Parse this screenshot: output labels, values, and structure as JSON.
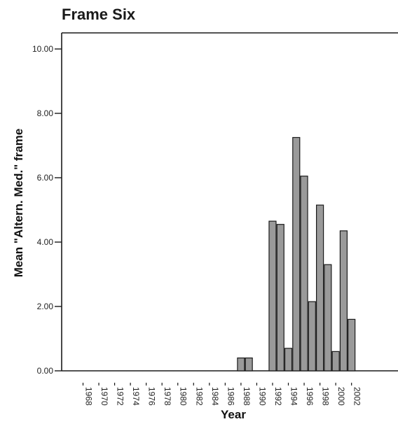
{
  "chart_data": {
    "type": "bar",
    "title": "Frame Six",
    "xlabel": "Year",
    "ylabel": "Mean \"Altern. Med.\" frame",
    "ylim": [
      0,
      10
    ],
    "yticks": [
      "0.00",
      "2.00",
      "4.00",
      "6.00",
      "8.00",
      "10.00"
    ],
    "xtick_labels": [
      "1968",
      "1970",
      "1972",
      "1974",
      "1976",
      "1978",
      "1980",
      "1982",
      "1984",
      "1986",
      "1988",
      "1990",
      "1992",
      "1994",
      "1996",
      "1998",
      "2000",
      "2002"
    ],
    "categories": [
      1968,
      1969,
      1970,
      1971,
      1972,
      1973,
      1974,
      1975,
      1976,
      1977,
      1978,
      1979,
      1980,
      1981,
      1982,
      1983,
      1984,
      1985,
      1986,
      1987,
      1988,
      1989,
      1990,
      1991,
      1992,
      1993,
      1994,
      1995,
      1996,
      1997,
      1998,
      1999,
      2000,
      2001,
      2002
    ],
    "values": [
      0,
      0,
      0,
      0,
      0,
      0,
      0,
      0,
      0,
      0,
      0,
      0,
      0,
      0,
      0,
      0,
      0,
      0,
      0,
      0,
      0.4,
      0.4,
      0,
      0,
      4.65,
      4.55,
      0.7,
      7.25,
      6.05,
      2.15,
      5.15,
      3.3,
      0.6,
      4.35,
      1.6
    ],
    "colors": {
      "bar_fill": "#9a9a9a",
      "bar_stroke": "#1a1a1a",
      "axis": "#1a1a1a"
    },
    "grid": false
  }
}
